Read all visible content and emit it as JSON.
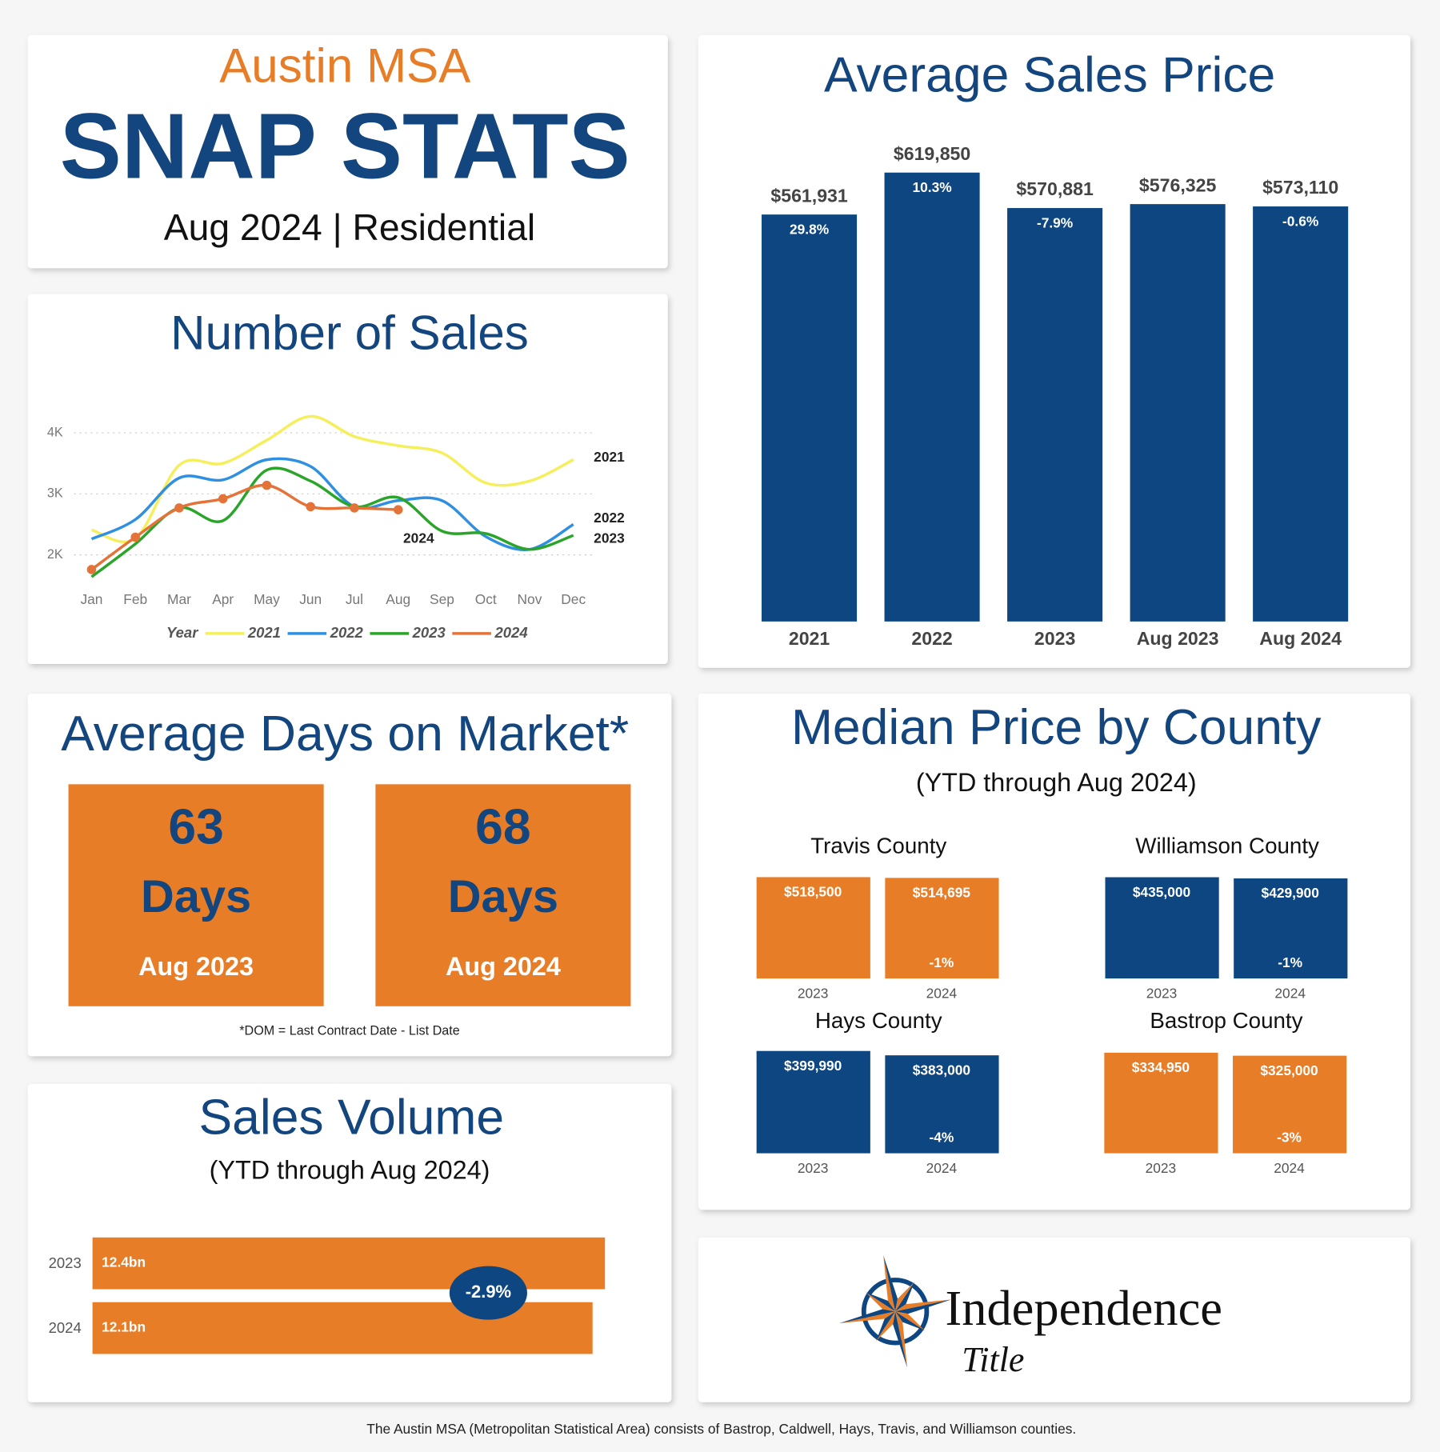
{
  "header": {
    "region": "Austin MSA",
    "title": "SNAP STATS",
    "subtitle": "Aug 2024 | Residential"
  },
  "chart_data": [
    {
      "type": "line",
      "title": "Number of Sales",
      "categories": [
        "Jan",
        "Feb",
        "Mar",
        "Apr",
        "May",
        "Jun",
        "Jul",
        "Aug",
        "Sep",
        "Oct",
        "Nov",
        "Dec"
      ],
      "ylim": [
        1500,
        4500
      ],
      "yticks": [
        {
          "value": 2000,
          "label": "2K"
        },
        {
          "value": 3000,
          "label": "3K"
        },
        {
          "value": 4000,
          "label": "4K"
        }
      ],
      "grid": true,
      "legend": "bottom",
      "legend_title": "Year",
      "series": [
        {
          "name": "2021",
          "color": "#f4ef5a",
          "values": [
            2410,
            2270,
            3470,
            3500,
            3880,
            4270,
            3940,
            3790,
            3670,
            3180,
            3210,
            3560
          ]
        },
        {
          "name": "2022",
          "color": "#2f8fe0",
          "values": [
            2260,
            2580,
            3260,
            3230,
            3560,
            3450,
            2790,
            2890,
            2890,
            2300,
            2090,
            2500
          ]
        },
        {
          "name": "2023",
          "color": "#2aa52a",
          "values": [
            1640,
            2180,
            2770,
            2560,
            3390,
            3210,
            2790,
            2940,
            2390,
            2350,
            2090,
            2320
          ]
        },
        {
          "name": "2024",
          "color": "#e4733a",
          "markers": true,
          "values": [
            1760,
            2290,
            2770,
            2920,
            3140,
            2790,
            2770,
            2740,
            null,
            null,
            null,
            null
          ]
        }
      ]
    },
    {
      "type": "bar",
      "title": "Average Sales Price",
      "color": "#0d4680",
      "categories": [
        "2021",
        "2022",
        "2023",
        "Aug 2023",
        "Aug 2024"
      ],
      "values": [
        561931,
        619850,
        570881,
        576325,
        573110
      ],
      "value_labels": [
        "$561,931",
        "$619,850",
        "$570,881",
        "$576,325",
        "$573,110"
      ],
      "changes": [
        29.8,
        10.3,
        -7.9,
        null,
        -0.6
      ],
      "change_labels": [
        "29.8%",
        "10.3%",
        "-7.9%",
        null,
        "-0.6%"
      ],
      "ylim": [
        0,
        650000
      ]
    },
    {
      "type": "bar",
      "title": "Median Price by County",
      "subtitle": "(YTD through Aug 2024)",
      "panels": [
        {
          "title": "Travis County",
          "color": "#e87d27",
          "categories": [
            "2023",
            "2024"
          ],
          "values": [
            518500,
            514695
          ],
          "value_labels": [
            "$518,500",
            "$514,695"
          ],
          "changes": [
            null,
            -1
          ],
          "change_labels": [
            null,
            "-1%"
          ],
          "ylim": [
            0,
            530000
          ]
        },
        {
          "title": "Williamson County",
          "color": "#0d4680",
          "categories": [
            "2023",
            "2024"
          ],
          "values": [
            435000,
            429900
          ],
          "value_labels": [
            "$435,000",
            "$429,900"
          ],
          "changes": [
            null,
            -1
          ],
          "change_labels": [
            null,
            "-1%"
          ],
          "ylim": [
            0,
            445000
          ]
        },
        {
          "title": "Hays County",
          "color": "#0d4680",
          "categories": [
            "2023",
            "2024"
          ],
          "values": [
            399990,
            383000
          ],
          "value_labels": [
            "$399,990",
            "$383,000"
          ],
          "changes": [
            null,
            -4
          ],
          "change_labels": [
            null,
            "-4%"
          ],
          "ylim": [
            0,
            405000
          ]
        },
        {
          "title": "Bastrop County",
          "color": "#e87d27",
          "categories": [
            "2023",
            "2024"
          ],
          "values": [
            334950,
            325000
          ],
          "value_labels": [
            "$334,950",
            "$325,000"
          ],
          "changes": [
            null,
            -3
          ],
          "change_labels": [
            null,
            "-3%"
          ],
          "ylim": [
            0,
            345000
          ]
        }
      ]
    },
    {
      "type": "hbar",
      "title": "Sales Volume",
      "subtitle": "(YTD through Aug 2024)",
      "color": "#e87d27",
      "categories": [
        "2023",
        "2024"
      ],
      "values": [
        12.4,
        12.1
      ],
      "value_labels": [
        "12.4bn",
        "12.1bn"
      ],
      "change": -2.9,
      "change_label": "-2.9%",
      "xlim": [
        0,
        12.8
      ]
    }
  ],
  "days_on_market": {
    "title": "Average Days on Market*",
    "unit": "Days",
    "cards": [
      {
        "value": 63,
        "label": "Aug 2023"
      },
      {
        "value": 68,
        "label": "Aug 2024"
      }
    ],
    "note": "*DOM = Last Contract Date - List Date"
  },
  "logo": {
    "name": "Independence",
    "tagline": "Title"
  },
  "footer": "The Austin MSA (Metropolitan Statistical Area) consists of Bastrop, Caldwell, Hays, Travis, and Williamson counties."
}
